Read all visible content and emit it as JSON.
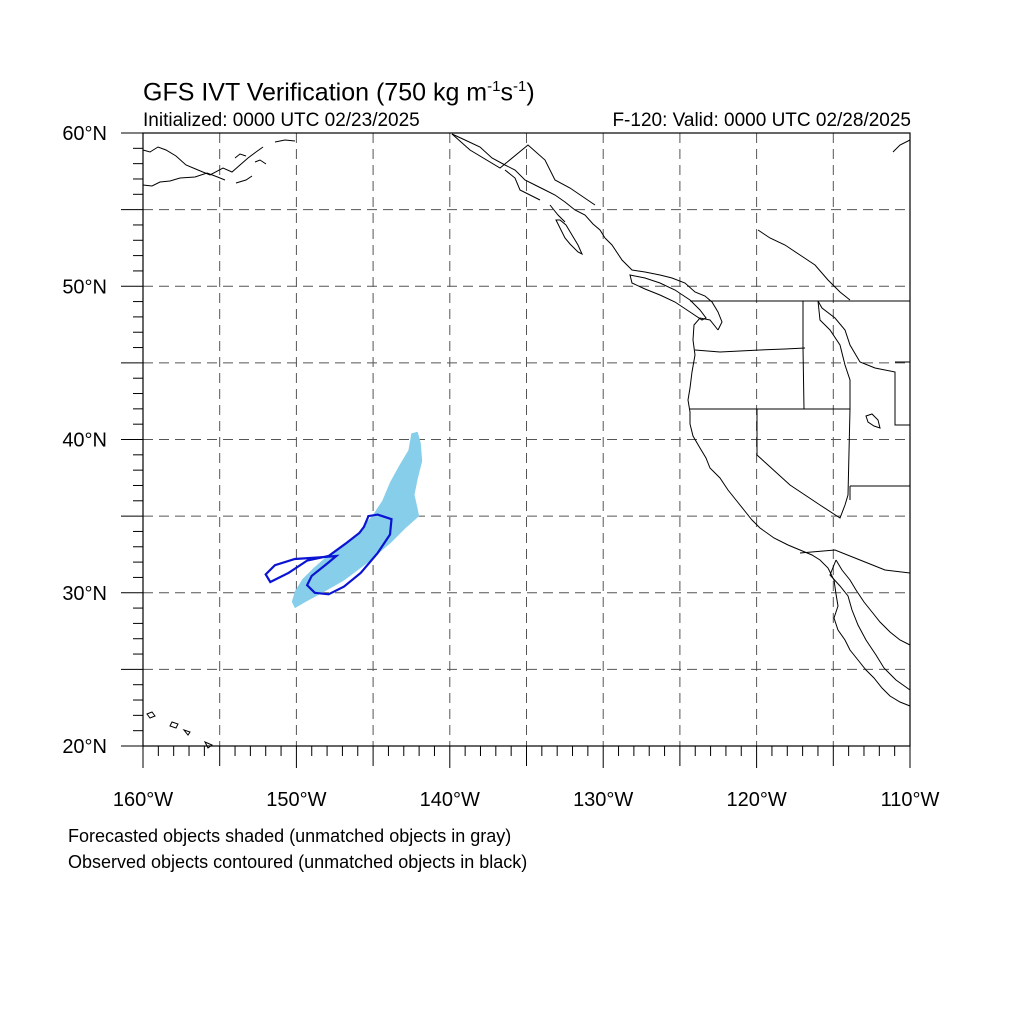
{
  "title": {
    "main": "GFS IVT Verification (750 kg m",
    "exp1": "-1",
    "mid": "s",
    "exp2": "-1",
    "end": ")"
  },
  "subtitle": {
    "left": "Initialized: 0000 UTC 02/23/2025",
    "right": "F-120: Valid: 0000 UTC 02/28/2025"
  },
  "map": {
    "lon_range": [
      -160,
      -110
    ],
    "lat_range": [
      20,
      60
    ],
    "grid_lines": "dashed every 5 degrees",
    "lat_ticks": [
      {
        "value": 60,
        "label": "60°N"
      },
      {
        "value": 50,
        "label": "50°N"
      },
      {
        "value": 40,
        "label": "40°N"
      },
      {
        "value": 30,
        "label": "30°N"
      },
      {
        "value": 20,
        "label": "20°N"
      }
    ],
    "lon_ticks": [
      {
        "value": -160,
        "label": "160°W"
      },
      {
        "value": -150,
        "label": "150°W"
      },
      {
        "value": -140,
        "label": "140°W"
      },
      {
        "value": -130,
        "label": "130°W"
      },
      {
        "value": -120,
        "label": "120°W"
      },
      {
        "value": -110,
        "label": "110°W"
      }
    ],
    "forecast_object": {
      "style": "shaded",
      "color": "#87ceeb",
      "points": [
        [
          -150.1,
          29.0
        ],
        [
          -149.4,
          29.4
        ],
        [
          -148.3,
          30.0
        ],
        [
          -146.9,
          30.8
        ],
        [
          -145.3,
          32.0
        ],
        [
          -143.8,
          33.3
        ],
        [
          -142.9,
          34.2
        ],
        [
          -142.0,
          35.0
        ],
        [
          -142.1,
          35.5
        ],
        [
          -142.3,
          36.4
        ],
        [
          -142.1,
          37.4
        ],
        [
          -141.8,
          38.6
        ],
        [
          -141.9,
          39.8
        ],
        [
          -142.1,
          40.5
        ],
        [
          -142.5,
          40.4
        ],
        [
          -142.7,
          39.3
        ],
        [
          -143.3,
          38.3
        ],
        [
          -143.9,
          37.2
        ],
        [
          -144.4,
          36.0
        ],
        [
          -145.0,
          35.1
        ],
        [
          -145.5,
          34.5
        ],
        [
          -146.2,
          33.6
        ],
        [
          -147.2,
          32.9
        ],
        [
          -148.1,
          32.3
        ],
        [
          -148.9,
          31.6
        ],
        [
          -149.6,
          30.9
        ],
        [
          -150.1,
          30.1
        ],
        [
          -150.3,
          29.4
        ]
      ]
    },
    "observed_object": {
      "style": "contoured",
      "color": "#0a14d2",
      "points": [
        [
          -148.8,
          30.0
        ],
        [
          -147.9,
          29.9
        ],
        [
          -146.9,
          30.4
        ],
        [
          -145.8,
          31.3
        ],
        [
          -144.7,
          32.6
        ],
        [
          -143.9,
          33.8
        ],
        [
          -143.8,
          34.8
        ],
        [
          -144.7,
          35.1
        ],
        [
          -145.3,
          35.0
        ],
        [
          -145.6,
          34.3
        ],
        [
          -145.9,
          33.9
        ],
        [
          -146.8,
          33.2
        ],
        [
          -147.9,
          32.4
        ],
        [
          -149.3,
          32.1
        ],
        [
          -150.5,
          31.3
        ],
        [
          -151.7,
          30.7
        ],
        [
          -152.0,
          31.2
        ],
        [
          -151.4,
          31.8
        ],
        [
          -150.1,
          32.2
        ],
        [
          -148.6,
          32.3
        ],
        [
          -147.4,
          32.4
        ],
        [
          -148.0,
          31.9
        ],
        [
          -149.0,
          31.1
        ],
        [
          -149.3,
          30.5
        ]
      ]
    }
  },
  "footnotes": [
    "Forecasted objects shaded (unmatched objects in gray)",
    "Observed objects contoured (unmatched objects in black)"
  ]
}
